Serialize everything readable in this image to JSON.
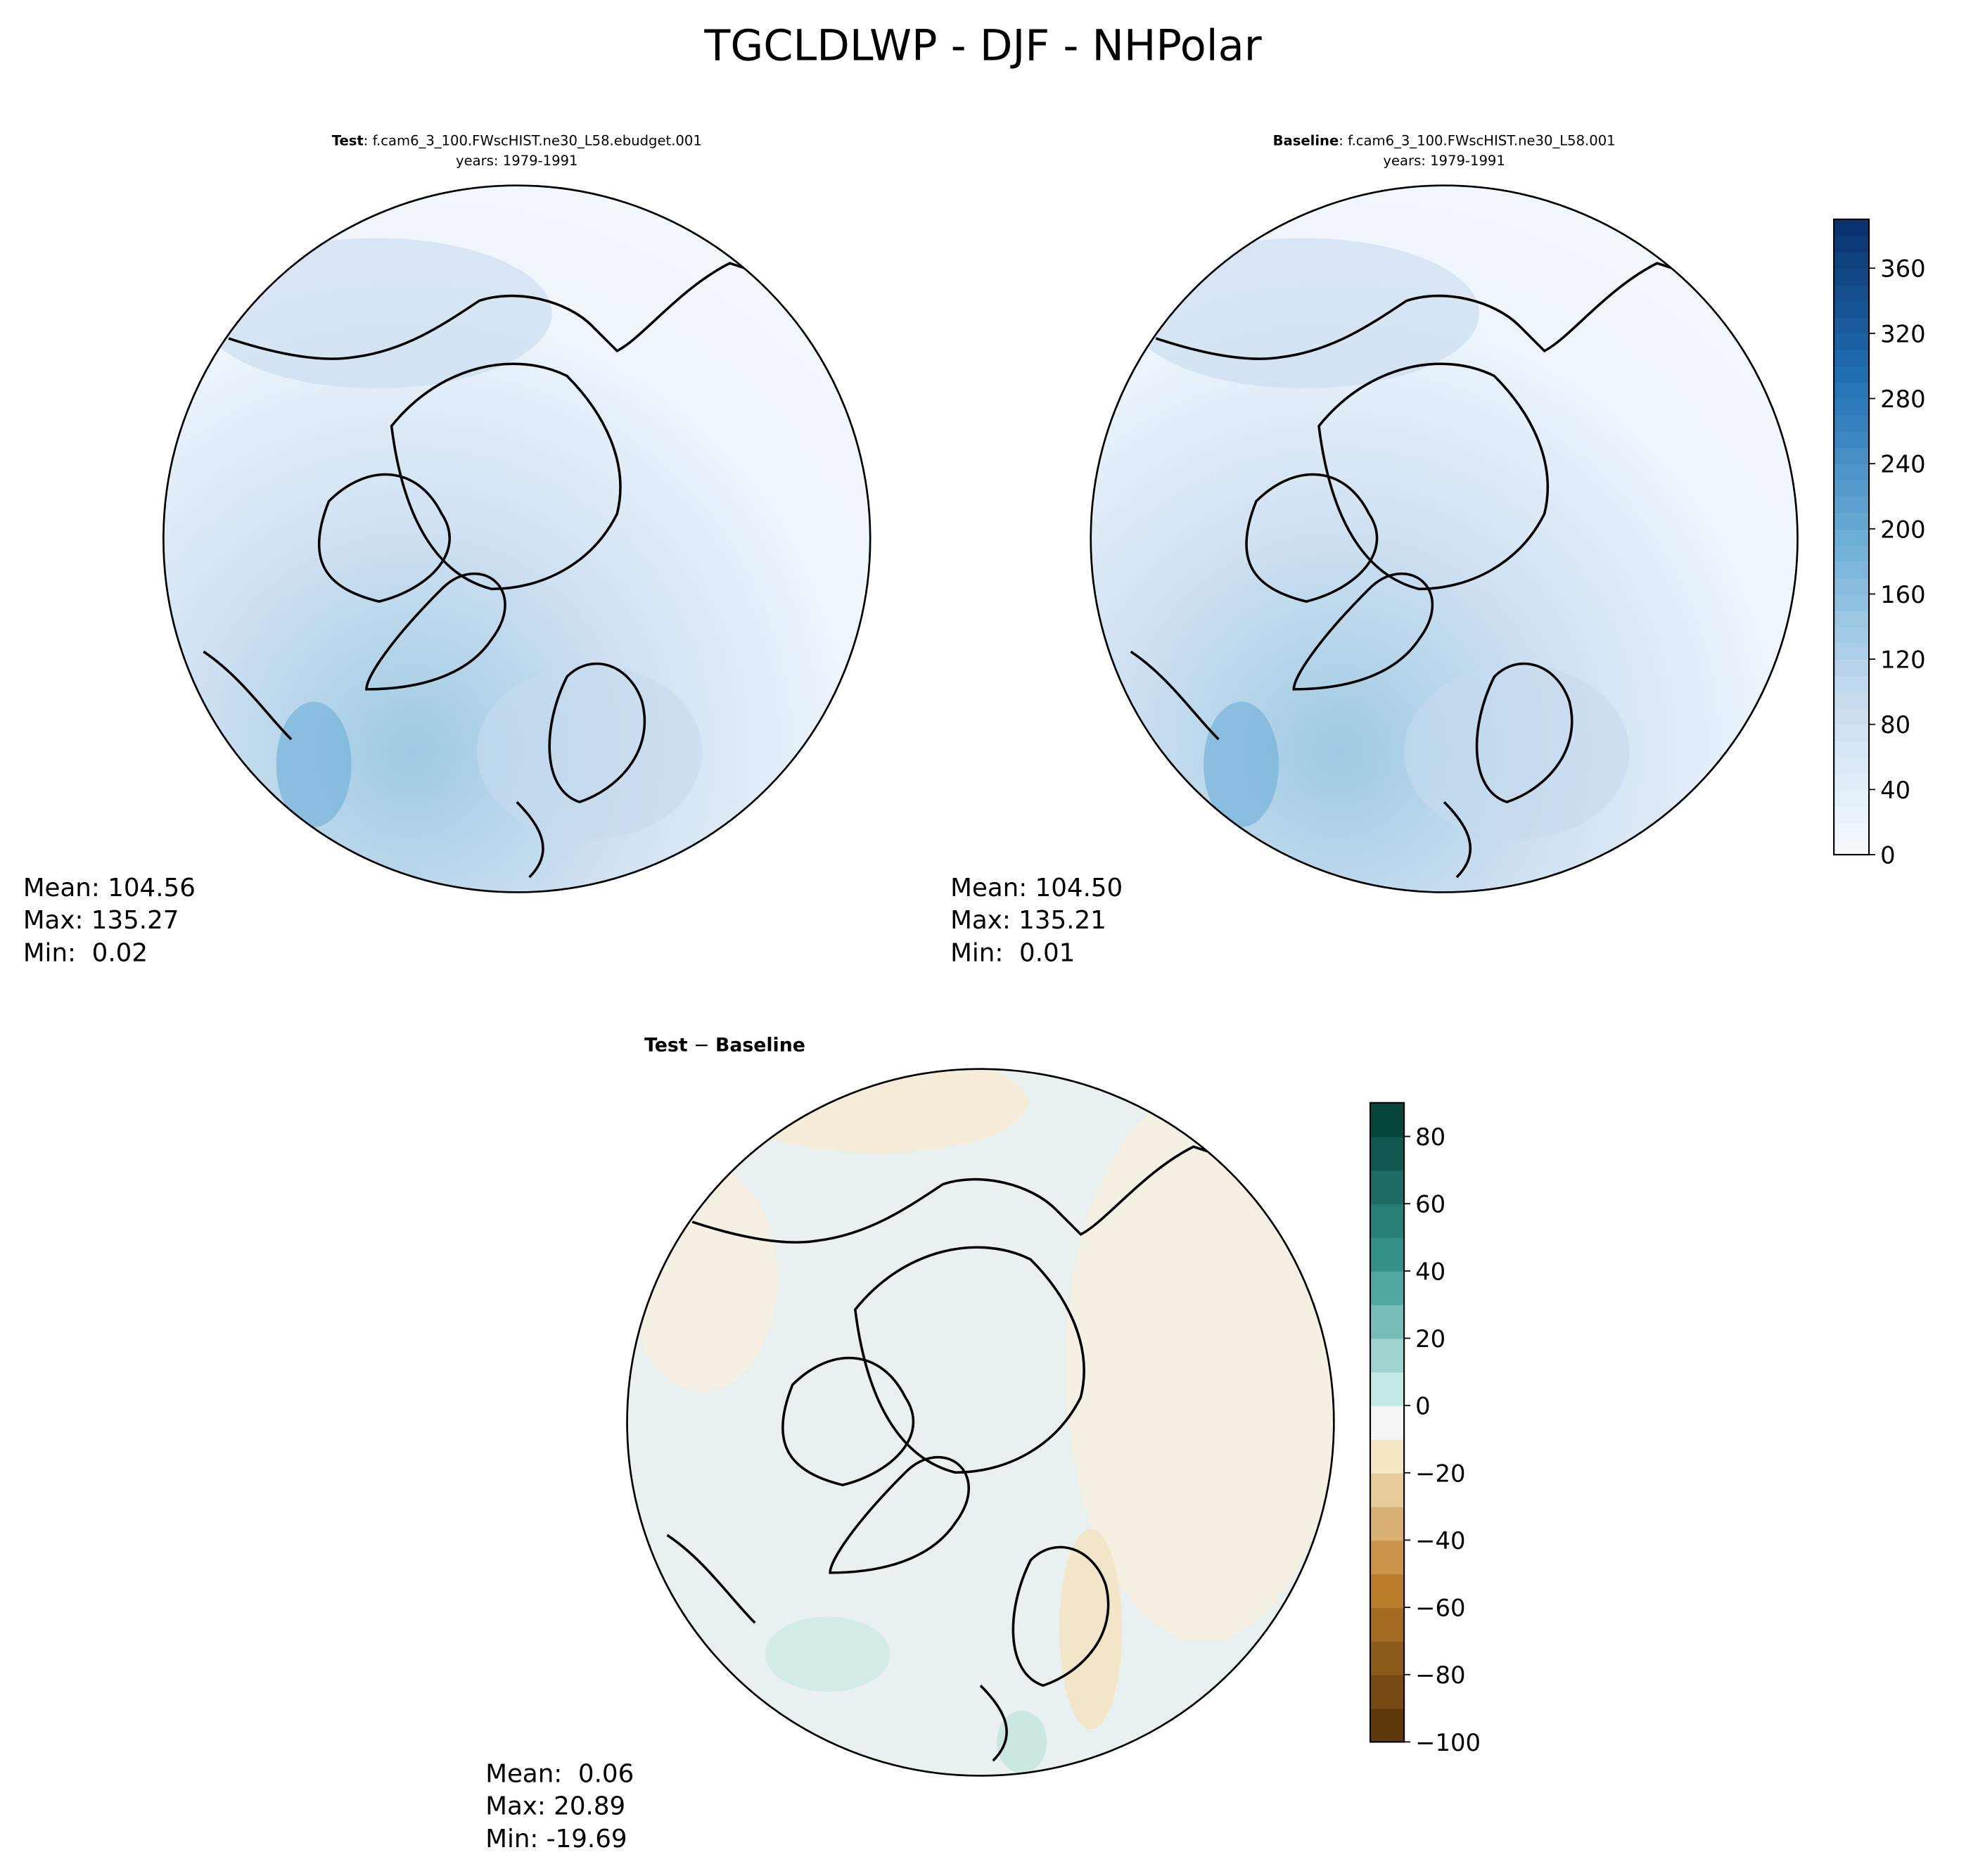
{
  "chart_data": [
    {
      "type": "heatmap",
      "suptitle": "TGCLDLWP - DJF - NHPolar",
      "panels": [
        {
          "id": "test",
          "title_bold": "Test",
          "title_rest": ": f.cam6_3_100.FWscHIST.ne30_L58.ebudget.001",
          "subtitle": "years: 1979-1991",
          "stats": {
            "mean": "Mean: 104.56",
            "max": "Max: 135.27",
            "min": "Min:  0.02"
          },
          "colormap": "Blues"
        },
        {
          "id": "baseline",
          "title_bold": "Baseline",
          "title_rest": ": f.cam6_3_100.FWscHIST.ne30_L58.001",
          "subtitle": "years: 1979-1991",
          "stats": {
            "mean": "Mean: 104.50",
            "max": "Max: 135.21",
            "min": "Min:  0.01"
          },
          "colormap": "Blues"
        },
        {
          "id": "diff",
          "title_bold": "Test",
          "title_sep": " − ",
          "title_bold2": "Baseline",
          "stats": {
            "mean": "Mean:  0.06",
            "max": "Max: 20.89",
            "min": "Min: -19.69"
          },
          "colormap": "BrBG"
        }
      ],
      "colorbars": [
        {
          "id": "main",
          "range": [
            0,
            390
          ],
          "step": 10,
          "ticks": [
            "0",
            "40",
            "80",
            "120",
            "160",
            "200",
            "240",
            "280",
            "320",
            "360"
          ],
          "tick_values": [
            0,
            40,
            80,
            120,
            160,
            200,
            240,
            280,
            320,
            360
          ]
        },
        {
          "id": "diff",
          "range": [
            -100,
            90
          ],
          "step": 10,
          "ticks": [
            "−100",
            "−80",
            "−60",
            "−40",
            "−20",
            "0",
            "20",
            "40",
            "60",
            "80"
          ],
          "tick_values": [
            -100,
            -80,
            -60,
            -40,
            -20,
            0,
            20,
            40,
            60,
            80
          ]
        }
      ]
    }
  ]
}
